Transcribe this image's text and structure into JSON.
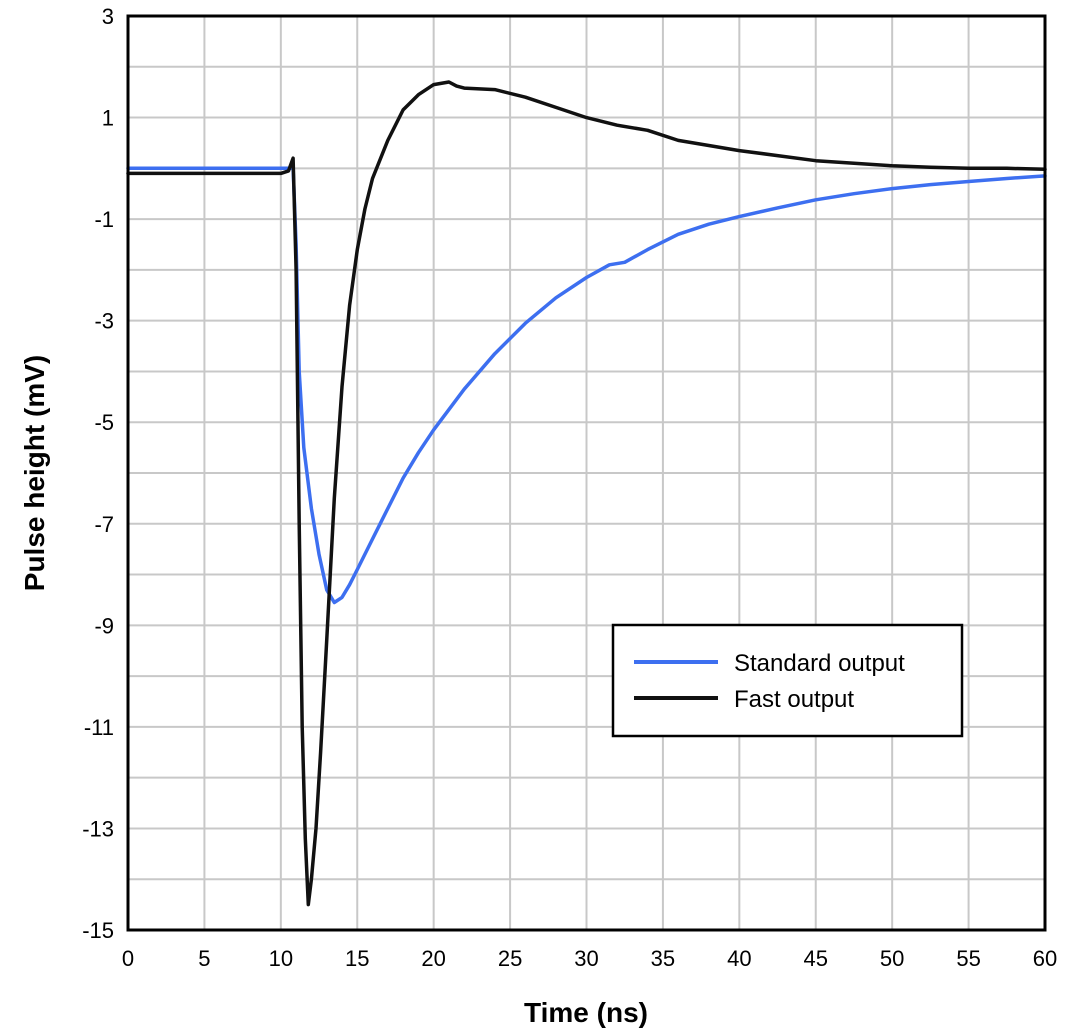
{
  "chart_data": {
    "type": "line",
    "title": "",
    "xlabel": "Time (ns)",
    "ylabel": "Pulse height (mV)",
    "xlim": [
      0,
      60
    ],
    "ylim": [
      -15,
      3
    ],
    "xticks": [
      0,
      5,
      10,
      15,
      20,
      25,
      30,
      35,
      40,
      45,
      50,
      55,
      60
    ],
    "yticks": [
      3,
      1,
      -1,
      -3,
      -5,
      -7,
      -9,
      -11,
      -13,
      -15
    ],
    "grid": true,
    "legend_position": "center-right",
    "series": [
      {
        "name": "Standard output",
        "color": "#3d6ff0",
        "x": [
          0,
          5,
          10,
          10.8,
          11.0,
          11.2,
          11.5,
          12.0,
          12.5,
          13.0,
          13.5,
          14.0,
          14.5,
          15,
          16,
          17,
          18,
          19,
          20,
          22,
          24,
          26,
          28,
          30,
          31.5,
          32.5,
          34,
          36,
          38,
          40,
          42.5,
          45,
          47.5,
          50,
          52.5,
          55,
          57.5,
          60
        ],
        "y": [
          0,
          0,
          0,
          0,
          -1.5,
          -4.0,
          -5.5,
          -6.7,
          -7.6,
          -8.3,
          -8.55,
          -8.45,
          -8.2,
          -7.9,
          -7.3,
          -6.7,
          -6.1,
          -5.6,
          -5.15,
          -4.35,
          -3.65,
          -3.05,
          -2.55,
          -2.15,
          -1.9,
          -1.85,
          -1.6,
          -1.3,
          -1.1,
          -0.95,
          -0.78,
          -0.62,
          -0.5,
          -0.4,
          -0.32,
          -0.26,
          -0.2,
          -0.15
        ]
      },
      {
        "name": "Fast output",
        "color": "#111111",
        "x": [
          0,
          5,
          10,
          10.5,
          10.8,
          11.0,
          11.2,
          11.4,
          11.6,
          11.8,
          12.0,
          12.3,
          12.6,
          13.0,
          13.5,
          14.0,
          14.5,
          15,
          15.5,
          16,
          17,
          18,
          19,
          20,
          21,
          21.5,
          22,
          24,
          26,
          28,
          30,
          32,
          34,
          36,
          38,
          40,
          42.5,
          45,
          47.5,
          50,
          52.5,
          55,
          57.5,
          60
        ],
        "y": [
          -0.1,
          -0.1,
          -0.1,
          -0.05,
          0.2,
          -2.0,
          -7.0,
          -11.0,
          -13.2,
          -14.5,
          -14.0,
          -13.0,
          -11.5,
          -9.3,
          -6.5,
          -4.3,
          -2.7,
          -1.6,
          -0.8,
          -0.2,
          0.55,
          1.15,
          1.45,
          1.65,
          1.7,
          1.62,
          1.58,
          1.55,
          1.4,
          1.2,
          1.0,
          0.85,
          0.75,
          0.55,
          0.45,
          0.35,
          0.25,
          0.15,
          0.1,
          0.05,
          0.02,
          0.0,
          0.0,
          -0.02
        ]
      }
    ]
  }
}
